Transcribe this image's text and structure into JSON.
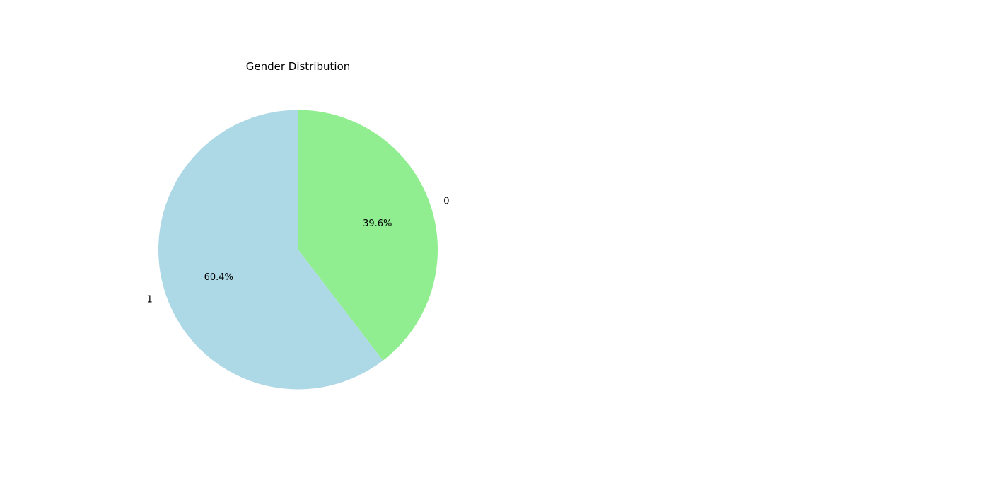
{
  "chart_data": {
    "type": "pie",
    "title": "Gender Distribution",
    "start_angle_deg": 90,
    "direction": "clockwise",
    "slices": [
      {
        "label": "0",
        "value": 39.6,
        "pct_label": "39.6%",
        "color": "#90ee90"
      },
      {
        "label": "1",
        "value": 60.4,
        "pct_label": "60.4%",
        "color": "#add8e6"
      }
    ]
  }
}
